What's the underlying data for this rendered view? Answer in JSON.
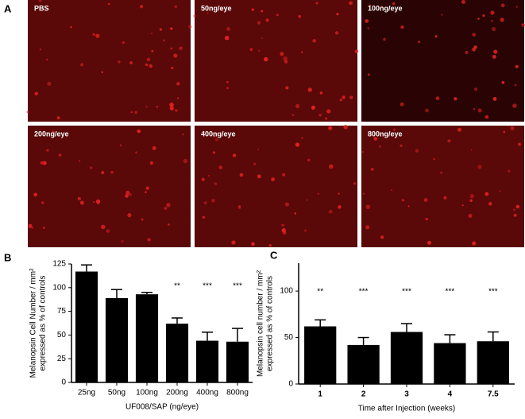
{
  "panel_a": {
    "label": "A",
    "images": [
      {
        "caption": "PBS"
      },
      {
        "caption": "50ng/eye"
      },
      {
        "caption": "100ng/eye"
      },
      {
        "caption": "200ng/eye"
      },
      {
        "caption": "400ng/eye"
      },
      {
        "caption": "800ng/eye"
      }
    ]
  },
  "chart_data": [
    {
      "type": "bar",
      "panel": "B",
      "ylabel": [
        "Melanopsin Cell Number / mm²",
        "expressed as % of controls"
      ],
      "xlabel": "UF008/SAP (ng/eye)",
      "categories": [
        "25ng",
        "50ng",
        "100ng",
        "200ng",
        "400ng",
        "800ng"
      ],
      "series": [
        {
          "color": "#000000",
          "values": [
            117,
            89,
            93,
            62,
            44,
            43
          ],
          "errors": [
            7,
            9,
            2,
            6,
            9,
            14
          ]
        }
      ],
      "annotations": [
        null,
        null,
        null,
        "**",
        "***",
        "***"
      ],
      "ylim": [
        0,
        125
      ],
      "yticks": [
        0,
        25,
        50,
        75,
        100,
        125
      ]
    },
    {
      "type": "bar",
      "panel": "C",
      "ylabel": [
        "Melanopsin cell number / mm²",
        "expressed as % of controls"
      ],
      "xlabel": "Time after Injection (weeks)",
      "categories": [
        "1",
        "2",
        "3",
        "4",
        "7.5"
      ],
      "series": [
        {
          "color": "#000000",
          "values": [
            62,
            42,
            56,
            44,
            46
          ],
          "errors": [
            7,
            8,
            9,
            9,
            10
          ]
        }
      ],
      "annotations": [
        "**",
        "***",
        "***",
        "***",
        "***"
      ],
      "ylim": [
        0,
        130
      ],
      "yticks": [
        0,
        50,
        100
      ]
    }
  ]
}
